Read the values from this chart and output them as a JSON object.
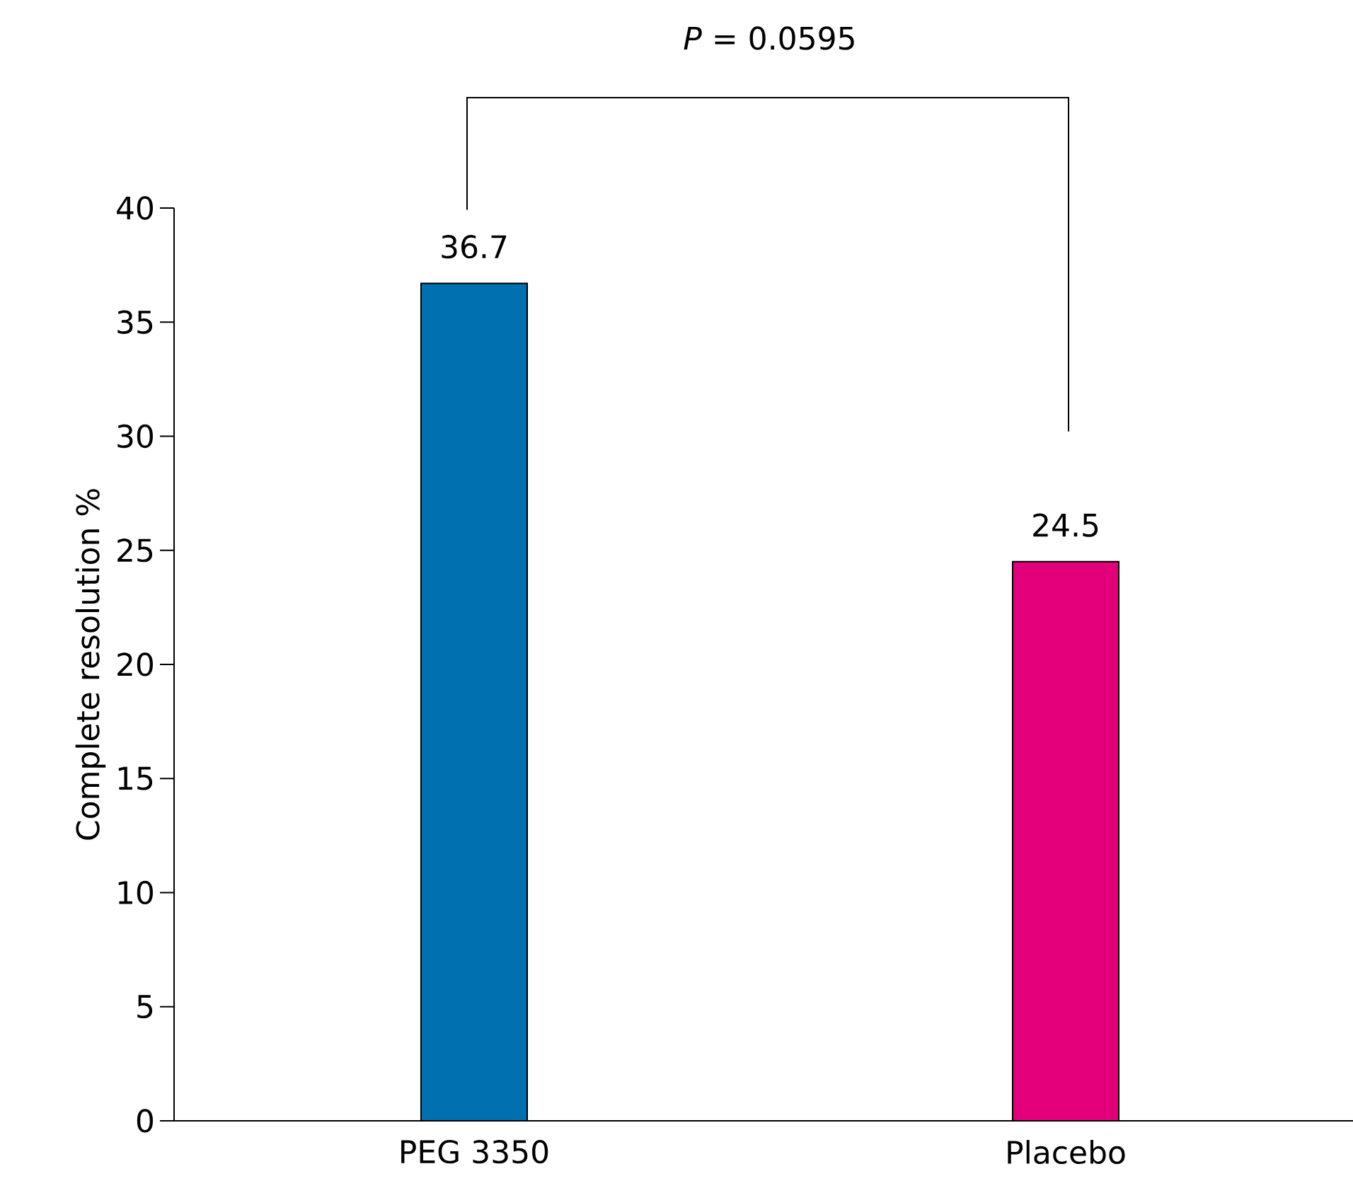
{
  "chart_data": {
    "type": "bar",
    "ylabel": "Complete resolution %",
    "categories": [
      "PEG 3350",
      "Placebo"
    ],
    "values": [
      36.7,
      24.5
    ],
    "colors": [
      "#0070b0",
      "#e2007a"
    ],
    "ylim": [
      0,
      40
    ],
    "yticks": [
      0,
      5,
      10,
      15,
      20,
      25,
      30,
      35,
      40
    ],
    "data_labels": true,
    "annotations": [
      "*P* = 0.0595"
    ]
  }
}
